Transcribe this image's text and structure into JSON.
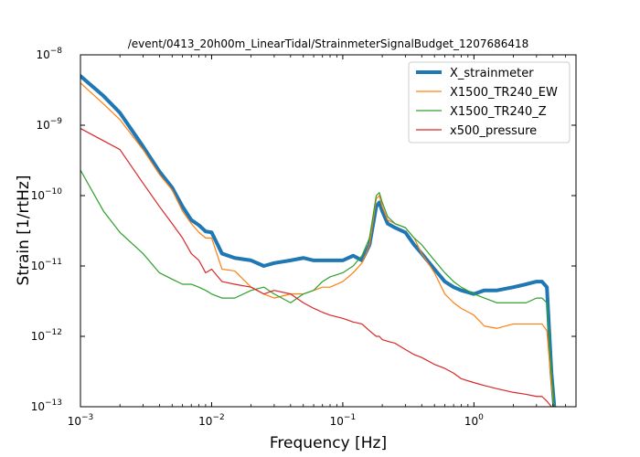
{
  "chart_data": {
    "type": "line",
    "title": "/event/0413_20h00m_LinearTidal/StrainmeterSignalBudget_1207686418",
    "xlabel": "Frequency [Hz]",
    "ylabel": "Strain [1/rtHz]",
    "xscale": "log",
    "yscale": "log",
    "xlim": [
      0.001,
      6.0
    ],
    "ylim": [
      1e-13,
      1e-08
    ],
    "x_ticks": [
      {
        "value": 0.001,
        "base": "10",
        "exp": "−3"
      },
      {
        "value": 0.01,
        "base": "10",
        "exp": "−2"
      },
      {
        "value": 0.1,
        "base": "10",
        "exp": "−1"
      },
      {
        "value": 1,
        "base": "10",
        "exp": "0"
      }
    ],
    "y_ticks": [
      {
        "value": 1e-13,
        "base": "10",
        "exp": "−13"
      },
      {
        "value": 1e-12,
        "base": "10",
        "exp": "−12"
      },
      {
        "value": 1e-11,
        "base": "10",
        "exp": "−11"
      },
      {
        "value": 1e-10,
        "base": "10",
        "exp": "−10"
      },
      {
        "value": 1e-09,
        "base": "10",
        "exp": "−9"
      },
      {
        "value": 1e-08,
        "base": "10",
        "exp": "−8"
      }
    ],
    "grid": false,
    "legend_position": "top-right",
    "series": [
      {
        "name": "X_strainmeter",
        "color": "#1f77b4",
        "line_width": 4,
        "x": [
          0.001,
          0.0015,
          0.002,
          0.003,
          0.004,
          0.005,
          0.006,
          0.007,
          0.008,
          0.009,
          0.01,
          0.012,
          0.015,
          0.02,
          0.025,
          0.03,
          0.04,
          0.05,
          0.06,
          0.07,
          0.08,
          0.1,
          0.12,
          0.14,
          0.16,
          0.18,
          0.19,
          0.2,
          0.22,
          0.25,
          0.3,
          0.35,
          0.4,
          0.5,
          0.6,
          0.7,
          0.8,
          1.0,
          1.2,
          1.5,
          2.0,
          2.5,
          3.0,
          3.3,
          3.6,
          3.9,
          4.1
        ],
        "y": [
          5e-09,
          2.6e-09,
          1.5e-09,
          5e-10,
          2.2e-10,
          1.3e-10,
          7e-11,
          4.5e-11,
          3.8e-11,
          3.1e-11,
          3e-11,
          1.5e-11,
          1.3e-11,
          1.2e-11,
          1e-11,
          1.1e-11,
          1.2e-11,
          1.3e-11,
          1.2e-11,
          1.2e-11,
          1.2e-11,
          1.2e-11,
          1.4e-11,
          1.2e-11,
          2e-11,
          7e-11,
          8e-11,
          6e-11,
          4e-11,
          3.5e-11,
          3e-11,
          2e-11,
          1.5e-11,
          9e-12,
          6e-12,
          5e-12,
          4.5e-12,
          4e-12,
          4.5e-12,
          4.5e-12,
          5e-12,
          5.5e-12,
          6e-12,
          6e-12,
          5e-12,
          3e-13,
          1e-13
        ]
      },
      {
        "name": "X1500_TR240_EW",
        "color": "#ff7f0e",
        "line_width": 1.2,
        "x": [
          0.001,
          0.0015,
          0.002,
          0.003,
          0.004,
          0.005,
          0.006,
          0.007,
          0.008,
          0.009,
          0.01,
          0.012,
          0.015,
          0.02,
          0.025,
          0.03,
          0.04,
          0.05,
          0.06,
          0.07,
          0.08,
          0.1,
          0.12,
          0.14,
          0.16,
          0.18,
          0.19,
          0.2,
          0.22,
          0.25,
          0.3,
          0.35,
          0.4,
          0.5,
          0.6,
          0.7,
          0.8,
          1.0,
          1.2,
          1.5,
          2.0,
          2.5,
          3.0,
          3.3,
          3.6,
          3.9,
          4.1
        ],
        "y": [
          4e-09,
          2e-09,
          1.2e-09,
          4.5e-10,
          2e-10,
          1.2e-10,
          6e-11,
          4e-11,
          3e-11,
          2.5e-11,
          2.5e-11,
          9e-12,
          8.5e-12,
          5e-12,
          4e-12,
          3.5e-12,
          4e-12,
          4e-12,
          4.5e-12,
          5e-12,
          5e-12,
          6e-12,
          8e-12,
          1.1e-11,
          2e-11,
          9e-11,
          1e-10,
          7e-11,
          4.5e-11,
          4e-11,
          3.5e-11,
          2.5e-11,
          1.5e-11,
          8e-12,
          4e-12,
          3e-12,
          2.5e-12,
          2e-12,
          1.4e-12,
          1.3e-12,
          1.5e-12,
          1.5e-12,
          1.5e-12,
          1.5e-12,
          1.2e-12,
          2e-13,
          1e-13
        ]
      },
      {
        "name": "X1500_TR240_Z",
        "color": "#2ca02c",
        "line_width": 1.2,
        "x": [
          0.001,
          0.0015,
          0.002,
          0.003,
          0.004,
          0.005,
          0.006,
          0.007,
          0.008,
          0.009,
          0.01,
          0.012,
          0.015,
          0.02,
          0.025,
          0.03,
          0.04,
          0.05,
          0.06,
          0.07,
          0.08,
          0.1,
          0.12,
          0.14,
          0.16,
          0.18,
          0.19,
          0.2,
          0.22,
          0.25,
          0.3,
          0.35,
          0.4,
          0.5,
          0.6,
          0.7,
          0.8,
          1.0,
          1.2,
          1.5,
          2.0,
          2.5,
          3.0,
          3.3,
          3.6,
          3.9,
          4.1
        ],
        "y": [
          2.3e-10,
          6e-11,
          3e-11,
          1.5e-11,
          8e-12,
          6.5e-12,
          5.5e-12,
          5.5e-12,
          5e-12,
          4.5e-12,
          4e-12,
          3.5e-12,
          3.5e-12,
          4.5e-12,
          5e-12,
          4e-12,
          3e-12,
          4e-12,
          4.5e-12,
          6e-12,
          7e-12,
          8e-12,
          1e-11,
          1.4e-11,
          2.5e-11,
          1e-10,
          1.1e-10,
          8e-11,
          5e-11,
          4e-11,
          3.5e-11,
          2.5e-11,
          2e-11,
          1.2e-11,
          8e-12,
          6e-12,
          5e-12,
          4e-12,
          3.5e-12,
          3e-12,
          3e-12,
          3e-12,
          3.5e-12,
          3.5e-12,
          3e-12,
          3e-13,
          1e-13
        ]
      },
      {
        "name": "x500_pressure",
        "color": "#d62728",
        "line_width": 1.2,
        "x": [
          0.001,
          0.0015,
          0.002,
          0.003,
          0.004,
          0.005,
          0.006,
          0.007,
          0.008,
          0.009,
          0.01,
          0.012,
          0.015,
          0.02,
          0.025,
          0.03,
          0.04,
          0.05,
          0.06,
          0.07,
          0.08,
          0.1,
          0.12,
          0.14,
          0.16,
          0.18,
          0.19,
          0.2,
          0.22,
          0.25,
          0.3,
          0.35,
          0.4,
          0.5,
          0.6,
          0.7,
          0.8,
          1.0,
          1.2,
          1.5,
          2.0,
          2.5,
          3.0,
          3.3,
          3.6,
          3.9
        ],
        "y": [
          9e-10,
          6e-10,
          4.5e-10,
          1.5e-10,
          7e-11,
          4e-11,
          2.5e-11,
          1.5e-11,
          1.2e-11,
          8e-12,
          9e-12,
          6e-12,
          5.5e-12,
          5e-12,
          4e-12,
          4.5e-12,
          4e-12,
          3e-12,
          2.5e-12,
          2.2e-12,
          2e-12,
          1.8e-12,
          1.6e-12,
          1.5e-12,
          1.2e-12,
          1e-12,
          1e-12,
          9e-13,
          8.5e-13,
          8e-13,
          6.5e-13,
          5.5e-13,
          5e-13,
          4e-13,
          3.5e-13,
          3e-13,
          2.5e-13,
          2.2e-13,
          2e-13,
          1.8e-13,
          1.6e-13,
          1.5e-13,
          1.4e-13,
          1.4e-13,
          1.2e-13,
          1e-13
        ]
      }
    ]
  }
}
